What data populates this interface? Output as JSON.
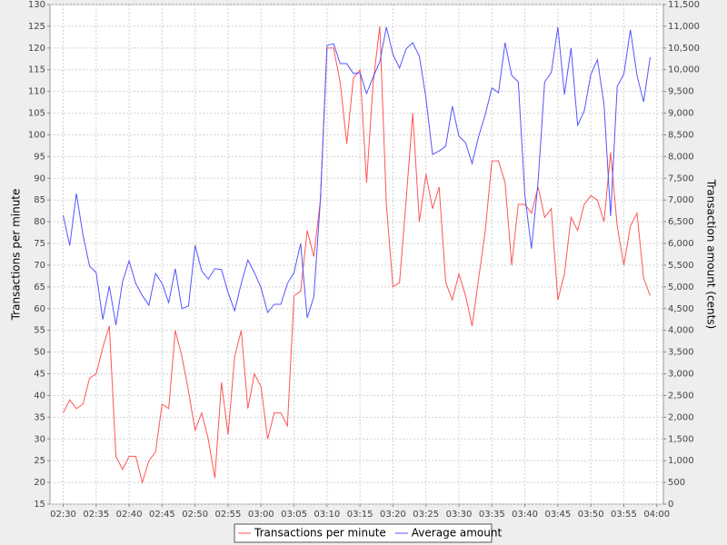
{
  "chart_data": {
    "type": "line",
    "y_label": "Transactions per minute",
    "y2_label": "Transaction amount (cents)",
    "x": [
      "02:30",
      "02:31",
      "02:32",
      "02:33",
      "02:34",
      "02:35",
      "02:36",
      "02:37",
      "02:38",
      "02:39",
      "02:40",
      "02:41",
      "02:42",
      "02:43",
      "02:44",
      "02:45",
      "02:46",
      "02:47",
      "02:48",
      "02:49",
      "02:50",
      "02:51",
      "02:52",
      "02:53",
      "02:54",
      "02:55",
      "02:56",
      "02:57",
      "02:58",
      "02:59",
      "03:00",
      "03:01",
      "03:02",
      "03:03",
      "03:04",
      "03:05",
      "03:06",
      "03:07",
      "03:08",
      "03:09",
      "03:10",
      "03:11",
      "03:12",
      "03:13",
      "03:14",
      "03:15",
      "03:16",
      "03:17",
      "03:18",
      "03:19",
      "03:20",
      "03:21",
      "03:22",
      "03:23",
      "03:24",
      "03:25",
      "03:26",
      "03:27",
      "03:28",
      "03:29",
      "03:30",
      "03:31",
      "03:32",
      "03:33",
      "03:34",
      "03:35",
      "03:36",
      "03:37",
      "03:38",
      "03:39",
      "03:40",
      "03:41",
      "03:42",
      "03:43",
      "03:44",
      "03:45",
      "03:46",
      "03:47",
      "03:48",
      "03:49",
      "03:50",
      "03:51",
      "03:52",
      "03:53",
      "03:54",
      "03:55",
      "03:56",
      "03:57",
      "03:58",
      "03:59"
    ],
    "series": [
      {
        "name": "Transactions per minute",
        "color": "#ff5555",
        "values": [
          36,
          39,
          37,
          38,
          44,
          45,
          51,
          56,
          26,
          23,
          26,
          26,
          20,
          25,
          27,
          38,
          37,
          55,
          49,
          41,
          32,
          36,
          30,
          21,
          43,
          31,
          49,
          55,
          37,
          45,
          42,
          30,
          36,
          36,
          33,
          63,
          64,
          78,
          72,
          85,
          120,
          120,
          112,
          98,
          113,
          115,
          89,
          112,
          125,
          84,
          65,
          66,
          85,
          105,
          80,
          91,
          83,
          88,
          66,
          62,
          68,
          63,
          56,
          67,
          78,
          94,
          94,
          89,
          70,
          84,
          84,
          82,
          88,
          81,
          83,
          62,
          68,
          81,
          78,
          84,
          86,
          85,
          80,
          96,
          79,
          70,
          79,
          82,
          67,
          63
        ]
      },
      {
        "name": "Average amount",
        "color": "#5555ff",
        "axis": "y2",
        "values": [
          6650,
          5950,
          7150,
          6200,
          5480,
          5330,
          4250,
          5020,
          4120,
          5120,
          5600,
          5080,
          4800,
          4580,
          5310,
          5080,
          4640,
          5420,
          4500,
          4560,
          5960,
          5370,
          5180,
          5420,
          5400,
          4870,
          4450,
          5080,
          5620,
          5330,
          4980,
          4410,
          4600,
          4600,
          5080,
          5330,
          6000,
          4290,
          4770,
          7000,
          10560,
          10600,
          10140,
          10140,
          9910,
          9930,
          9450,
          9830,
          10180,
          10980,
          10350,
          10040,
          10480,
          10620,
          10310,
          9350,
          8050,
          8130,
          8240,
          9160,
          8470,
          8320,
          7840,
          8470,
          8970,
          9580,
          9470,
          10620,
          9870,
          9720,
          7110,
          5880,
          7420,
          9720,
          9930,
          10980,
          9430,
          10500,
          8720,
          9050,
          9890,
          10230,
          9200,
          6630,
          9620,
          9890,
          10920,
          9870,
          9260,
          10290
        ]
      }
    ],
    "xlim": [
      "02:28",
      "04:01"
    ],
    "xticks": [
      "02:30",
      "02:35",
      "02:40",
      "02:45",
      "02:50",
      "02:55",
      "03:00",
      "03:05",
      "03:10",
      "03:15",
      "03:20",
      "03:25",
      "03:30",
      "03:35",
      "03:40",
      "03:45",
      "03:50",
      "03:55",
      "04:00"
    ],
    "ylim": [
      15,
      130
    ],
    "yticks": [
      15,
      20,
      25,
      30,
      35,
      40,
      45,
      50,
      55,
      60,
      65,
      70,
      75,
      80,
      85,
      90,
      95,
      100,
      105,
      110,
      115,
      120,
      125,
      130
    ],
    "y2lim": [
      0,
      11500
    ],
    "y2ticks": [
      0,
      500,
      {
        "value": 1000,
        "label": "1,000"
      },
      {
        "value": 1500,
        "label": "1,500"
      },
      {
        "value": 2000,
        "label": "2,000"
      },
      {
        "value": 2500,
        "label": "2,500"
      },
      {
        "value": 3000,
        "label": "3,000"
      },
      {
        "value": 3500,
        "label": "3,500"
      },
      {
        "value": 4000,
        "label": "4,000"
      },
      {
        "value": 4500,
        "label": "4,500"
      },
      {
        "value": 5000,
        "label": "5,000"
      },
      {
        "value": 5500,
        "label": "5,500"
      },
      {
        "value": 6000,
        "label": "6,000"
      },
      {
        "value": 6500,
        "label": "6,500"
      },
      {
        "value": 7000,
        "label": "7,000"
      },
      {
        "value": 7500,
        "label": "7,500"
      },
      {
        "value": 8000,
        "label": "8,000"
      },
      {
        "value": 8500,
        "label": "8,500"
      },
      {
        "value": 9000,
        "label": "9,000"
      },
      {
        "value": 9500,
        "label": "9,500"
      },
      {
        "value": 10000,
        "label": "10,000"
      },
      {
        "value": 10500,
        "label": "10,500"
      },
      {
        "value": 11000,
        "label": "11,000"
      },
      {
        "value": 11500,
        "label": "11,500"
      }
    ],
    "grid": true,
    "legend": "bottom"
  }
}
